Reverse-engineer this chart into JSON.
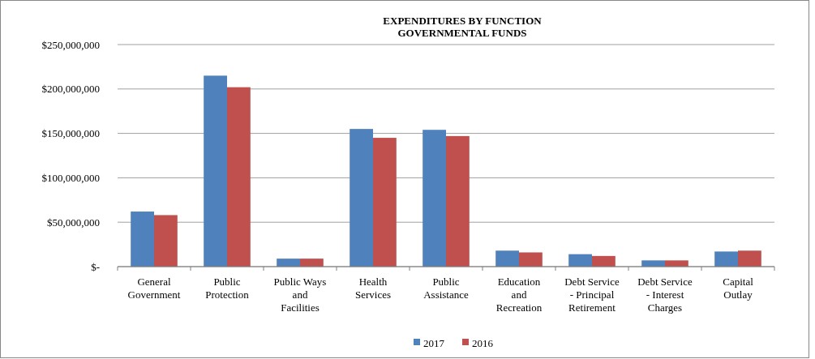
{
  "chart_data": {
    "type": "bar",
    "title": "EXPENDITURES BY FUNCTION",
    "subtitle": "GOVERNMENTAL FUNDS",
    "categories": [
      "General Government",
      "Public Protection",
      "Public Ways and Facilities",
      "Health Services",
      "Public Assistance",
      "Education and Recreation",
      "Debt Service - Principal Retirement",
      "Debt Service - Interest Charges",
      "Capital Outlay"
    ],
    "series": [
      {
        "name": "2017",
        "color": "#4f81bd",
        "values": [
          62000000,
          215000000,
          9000000,
          155000000,
          154000000,
          18000000,
          14000000,
          7000000,
          17000000
        ]
      },
      {
        "name": "2016",
        "color": "#c0504d",
        "values": [
          58000000,
          202000000,
          9000000,
          145000000,
          147000000,
          16000000,
          12000000,
          7000000,
          18000000
        ]
      }
    ],
    "ylim": [
      0,
      250000000
    ],
    "yticks": [
      {
        "value": 0,
        "label": "$-"
      },
      {
        "value": 50000000,
        "label": "$50,000,000"
      },
      {
        "value": 100000000,
        "label": "$100,000,000"
      },
      {
        "value": 150000000,
        "label": "$150,000,000"
      },
      {
        "value": 200000000,
        "label": "$200,000,000"
      },
      {
        "value": 250000000,
        "label": "$250,000,000"
      }
    ],
    "grid": "y",
    "legend": "bottom"
  }
}
